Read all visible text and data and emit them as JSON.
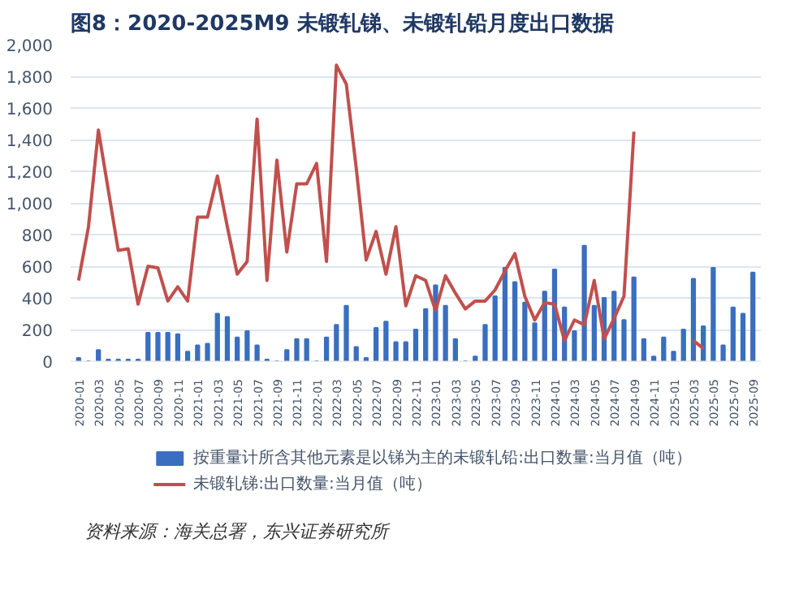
{
  "chart_data": {
    "type": "bar",
    "title": "图8：2020-2025M9 未锻轧锑、未锻轧铅月度出口数据",
    "categories": [
      "2020-01",
      null,
      "2020-03",
      null,
      "2020-05",
      null,
      "2020-07",
      null,
      "2020-09",
      null,
      "2020-11",
      null,
      "2021-01",
      null,
      "2021-03",
      null,
      "2021-05",
      null,
      "2021-07",
      null,
      "2021-09",
      null,
      "2021-11",
      null,
      "2022-01",
      null,
      "2022-03",
      null,
      "2022-05",
      null,
      "2022-07",
      null,
      "2022-09",
      null,
      "2022-11",
      null,
      "2023-01",
      null,
      "2023-03",
      null,
      "2023-05",
      null,
      "2023-07",
      null,
      "2023-09",
      null,
      "2023-11",
      null,
      "2024-01",
      null,
      "2024-03",
      null,
      "2024-05",
      null,
      "2024-07",
      null,
      "2024-09",
      null,
      "2024-11",
      null,
      "2025-01",
      null,
      "2025-03",
      null,
      "2025-05",
      null,
      "2025-07",
      null,
      "2025-09"
    ],
    "series": [
      {
        "name": "按重量计所含其他元素是以锑为主的未锻轧铅:出口数量:当月值（吨）",
        "color": "#3a6fbf",
        "values": [
          20,
          0,
          70,
          10,
          10,
          10,
          10,
          180,
          180,
          180,
          170,
          60,
          100,
          110,
          300,
          280,
          150,
          190,
          100,
          10,
          0,
          70,
          140,
          140,
          0,
          150,
          230,
          350,
          90,
          20,
          210,
          250,
          120,
          120,
          200,
          330,
          480,
          350,
          140,
          0,
          30,
          230,
          410,
          590,
          500,
          370,
          240,
          440,
          580,
          340,
          190,
          730,
          350,
          400,
          440,
          260,
          530,
          140,
          30,
          150,
          60,
          200,
          520,
          220,
          590,
          100,
          340,
          300,
          560
        ]
      },
      {
        "name": "未锻轧锑:出口数量:当月值（吨）",
        "type": "line",
        "color": "#c0504d",
        "values": [
          510,
          850,
          1460,
          1080,
          700,
          710,
          360,
          600,
          590,
          380,
          470,
          380,
          910,
          910,
          1170,
          850,
          550,
          630,
          1530,
          510,
          1270,
          690,
          1120,
          1120,
          1250,
          630,
          1870,
          1750,
          1220,
          640,
          820,
          550,
          850,
          350,
          540,
          510,
          320,
          540,
          430,
          330,
          380,
          380,
          450,
          570,
          680,
          410,
          260,
          370,
          360,
          130,
          260,
          230,
          510,
          140,
          270,
          410,
          1450,
          null,
          null,
          null,
          null,
          null,
          130,
          80,
          null,
          null,
          null,
          null,
          null
        ]
      }
    ],
    "ylim": [
      0,
      2000
    ],
    "yticks": [
      0,
      {
        "value": 200,
        "label": "200"
      },
      {
        "value": 400,
        "label": "400"
      },
      {
        "value": 600,
        "label": "600"
      },
      {
        "value": 800,
        "label": "800"
      },
      {
        "value": 1000,
        "label": "1,000"
      },
      {
        "value": 1200,
        "label": "1,200"
      },
      {
        "value": 1400,
        "label": "1,400"
      },
      {
        "value": 1600,
        "label": "1,600"
      },
      {
        "value": 1800,
        "label": "1,800"
      },
      {
        "value": 2000,
        "label": "2,000"
      }
    ],
    "grid": "y",
    "legend": "bottom",
    "annotations": [
      "资料来源：海关总署，东兴证券研究所"
    ]
  }
}
